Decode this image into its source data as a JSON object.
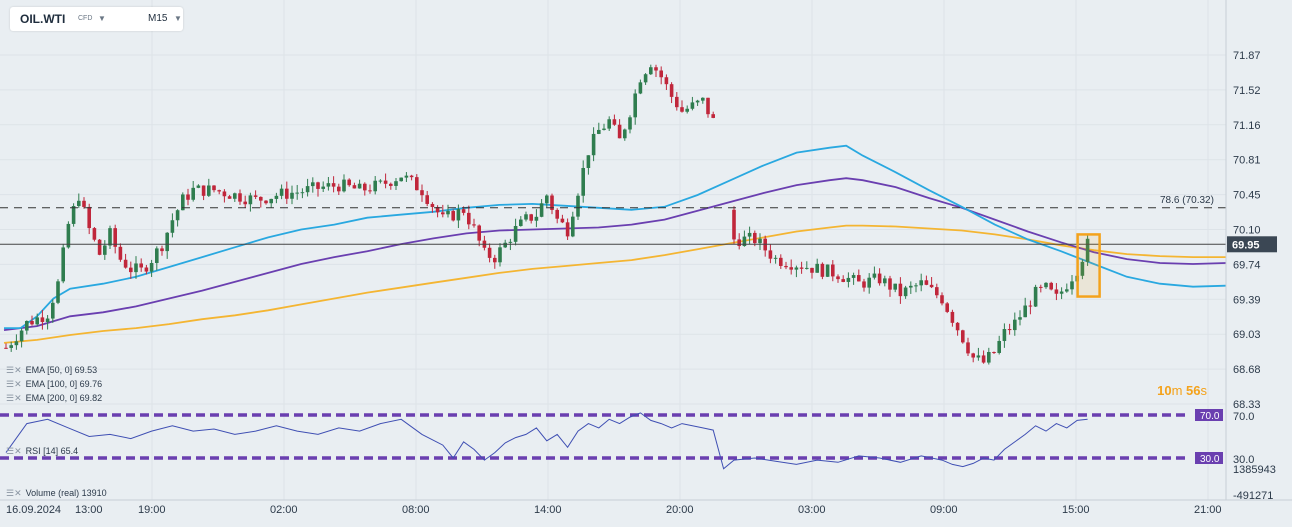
{
  "header": {
    "symbol": "OIL.WTI",
    "instrument_type": "CFD",
    "timeframe": "M15"
  },
  "indicators": [
    {
      "label": "EMA [50, 0]",
      "value": "69.53",
      "color": "#29a8e0"
    },
    {
      "label": "EMA [100, 0]",
      "value": "69.76",
      "color": "#6a3fb0"
    },
    {
      "label": "EMA [200, 0]",
      "value": "69.82",
      "color": "#f4b532"
    }
  ],
  "rsi": {
    "label": "RSI [14]",
    "value": "65.4",
    "upper": "70.0",
    "lower": "30.0"
  },
  "volume": {
    "label": "Volume (real)",
    "value": "13910",
    "axis_top": "1385943",
    "axis_bottom": "-491271"
  },
  "countdown": {
    "minutes": "10",
    "min_unit": "m",
    "seconds": "56",
    "sec_unit": "s"
  },
  "chart_data": {
    "type": "candlestick",
    "y_ticks": [
      "71.87",
      "71.52",
      "71.16",
      "70.81",
      "70.45",
      "70.10",
      "69.74",
      "69.39",
      "69.03",
      "68.68",
      "68.33"
    ],
    "x_ticks": [
      "16.09.2024",
      "13:00",
      "19:00",
      "02:00",
      "08:00",
      "14:00",
      "20:00",
      "03:00",
      "09:00",
      "15:00",
      "21:00"
    ],
    "current_price": "69.95",
    "fib_level": "78.6 (70.32)",
    "ema50": [
      [
        0,
        69.1
      ],
      [
        4,
        69.1
      ],
      [
        8,
        69.22
      ],
      [
        12,
        69.4
      ],
      [
        16,
        69.5
      ],
      [
        24,
        69.55
      ],
      [
        32,
        69.62
      ],
      [
        40,
        69.72
      ],
      [
        48,
        69.82
      ],
      [
        56,
        69.92
      ],
      [
        64,
        70.02
      ],
      [
        72,
        70.1
      ],
      [
        80,
        70.15
      ],
      [
        88,
        70.22
      ],
      [
        96,
        70.25
      ],
      [
        104,
        70.28
      ],
      [
        112,
        70.32
      ],
      [
        120,
        70.35
      ],
      [
        128,
        70.36
      ],
      [
        136,
        70.34
      ],
      [
        144,
        70.32
      ],
      [
        152,
        70.3
      ],
      [
        160,
        70.33
      ],
      [
        168,
        70.45
      ],
      [
        176,
        70.6
      ],
      [
        184,
        70.75
      ],
      [
        192,
        70.88
      ],
      [
        200,
        70.93
      ],
      [
        204,
        70.95
      ],
      [
        208,
        70.85
      ],
      [
        216,
        70.68
      ],
      [
        224,
        70.5
      ],
      [
        232,
        70.33
      ],
      [
        240,
        70.15
      ],
      [
        248,
        70.0
      ],
      [
        256,
        69.88
      ],
      [
        264,
        69.75
      ],
      [
        272,
        69.62
      ],
      [
        280,
        69.55
      ],
      [
        288,
        69.52
      ],
      [
        296,
        69.53
      ]
    ],
    "ema100": [
      [
        0,
        69.08
      ],
      [
        8,
        69.12
      ],
      [
        16,
        69.22
      ],
      [
        24,
        69.26
      ],
      [
        32,
        69.32
      ],
      [
        40,
        69.4
      ],
      [
        48,
        69.48
      ],
      [
        56,
        69.57
      ],
      [
        64,
        69.66
      ],
      [
        72,
        69.75
      ],
      [
        80,
        69.82
      ],
      [
        88,
        69.88
      ],
      [
        96,
        69.95
      ],
      [
        104,
        70.01
      ],
      [
        112,
        70.06
      ],
      [
        120,
        70.09
      ],
      [
        128,
        70.1
      ],
      [
        136,
        70.11
      ],
      [
        144,
        70.12
      ],
      [
        152,
        70.15
      ],
      [
        160,
        70.2
      ],
      [
        168,
        70.29
      ],
      [
        176,
        70.38
      ],
      [
        184,
        70.47
      ],
      [
        192,
        70.55
      ],
      [
        200,
        70.6
      ],
      [
        204,
        70.62
      ],
      [
        208,
        70.6
      ],
      [
        216,
        70.53
      ],
      [
        224,
        70.42
      ],
      [
        232,
        70.32
      ],
      [
        240,
        70.2
      ],
      [
        248,
        70.08
      ],
      [
        256,
        69.97
      ],
      [
        264,
        69.87
      ],
      [
        272,
        69.8
      ],
      [
        280,
        69.76
      ],
      [
        288,
        69.75
      ],
      [
        296,
        69.76
      ]
    ],
    "ema200": [
      [
        0,
        68.95
      ],
      [
        8,
        68.98
      ],
      [
        16,
        69.03
      ],
      [
        24,
        69.07
      ],
      [
        32,
        69.1
      ],
      [
        40,
        69.14
      ],
      [
        48,
        69.19
      ],
      [
        56,
        69.23
      ],
      [
        64,
        69.28
      ],
      [
        72,
        69.34
      ],
      [
        80,
        69.4
      ],
      [
        88,
        69.46
      ],
      [
        96,
        69.51
      ],
      [
        104,
        69.56
      ],
      [
        112,
        69.61
      ],
      [
        120,
        69.66
      ],
      [
        128,
        69.7
      ],
      [
        136,
        69.73
      ],
      [
        144,
        69.76
      ],
      [
        152,
        69.79
      ],
      [
        160,
        69.84
      ],
      [
        168,
        69.9
      ],
      [
        176,
        69.96
      ],
      [
        184,
        70.02
      ],
      [
        192,
        70.08
      ],
      [
        200,
        70.12
      ],
      [
        204,
        70.14
      ],
      [
        208,
        70.14
      ],
      [
        216,
        70.13
      ],
      [
        224,
        70.11
      ],
      [
        232,
        70.09
      ],
      [
        240,
        70.05
      ],
      [
        248,
        70.0
      ],
      [
        256,
        69.94
      ],
      [
        264,
        69.89
      ],
      [
        272,
        69.85
      ],
      [
        280,
        69.83
      ],
      [
        288,
        69.82
      ],
      [
        296,
        69.82
      ]
    ],
    "price_path": [
      [
        0,
        68.9
      ],
      [
        4,
        69.15
      ],
      [
        8,
        69.25
      ],
      [
        10,
        69.55
      ],
      [
        12,
        70.15
      ],
      [
        14,
        70.45
      ],
      [
        16,
        70.1
      ],
      [
        18,
        69.85
      ],
      [
        20,
        70.05
      ],
      [
        22,
        69.8
      ],
      [
        24,
        69.7
      ],
      [
        26,
        69.68
      ],
      [
        28,
        69.8
      ],
      [
        30,
        69.95
      ],
      [
        32,
        70.2
      ],
      [
        34,
        70.4
      ],
      [
        36,
        70.5
      ],
      [
        40,
        70.5
      ],
      [
        44,
        70.45
      ],
      [
        48,
        70.4
      ],
      [
        52,
        70.45
      ],
      [
        56,
        70.48
      ],
      [
        60,
        70.52
      ],
      [
        64,
        70.55
      ],
      [
        68,
        70.5
      ],
      [
        72,
        70.55
      ],
      [
        76,
        70.65
      ],
      [
        80,
        70.5
      ],
      [
        84,
        70.2
      ],
      [
        88,
        70.3
      ],
      [
        90,
        70.1
      ],
      [
        92,
        69.85
      ],
      [
        94,
        69.82
      ],
      [
        96,
        69.95
      ],
      [
        98,
        70.1
      ],
      [
        100,
        70.2
      ],
      [
        102,
        70.25
      ],
      [
        104,
        70.45
      ],
      [
        106,
        70.2
      ],
      [
        108,
        70.1
      ],
      [
        110,
        70.5
      ],
      [
        112,
        70.9
      ],
      [
        114,
        71.1
      ],
      [
        116,
        71.2
      ],
      [
        118,
        71.0
      ],
      [
        120,
        71.3
      ],
      [
        122,
        71.65
      ],
      [
        124,
        71.8
      ],
      [
        126,
        71.65
      ],
      [
        128,
        71.45
      ],
      [
        130,
        71.3
      ],
      [
        132,
        71.35
      ],
      [
        134,
        71.4
      ],
      [
        136,
        71.2
      ],
      [
        140,
        70.0
      ],
      [
        144,
        70.0
      ],
      [
        148,
        69.8
      ],
      [
        152,
        69.75
      ],
      [
        156,
        69.7
      ],
      [
        160,
        69.65
      ],
      [
        164,
        69.55
      ],
      [
        168,
        69.6
      ],
      [
        172,
        69.45
      ],
      [
        176,
        69.55
      ],
      [
        180,
        69.4
      ],
      [
        182,
        69.2
      ],
      [
        184,
        69.0
      ],
      [
        186,
        68.8
      ],
      [
        188,
        68.75
      ],
      [
        190,
        68.85
      ],
      [
        192,
        69.05
      ],
      [
        194,
        69.15
      ],
      [
        196,
        69.3
      ],
      [
        198,
        69.45
      ],
      [
        200,
        69.5
      ],
      [
        202,
        69.4
      ],
      [
        204,
        69.55
      ],
      [
        206,
        69.7
      ],
      [
        208,
        69.95
      ]
    ],
    "rsi_path": [
      [
        0,
        35
      ],
      [
        4,
        62
      ],
      [
        8,
        66
      ],
      [
        12,
        58
      ],
      [
        16,
        50
      ],
      [
        20,
        52
      ],
      [
        24,
        48
      ],
      [
        28,
        55
      ],
      [
        32,
        60
      ],
      [
        36,
        55
      ],
      [
        40,
        57
      ],
      [
        44,
        52
      ],
      [
        48,
        55
      ],
      [
        52,
        60
      ],
      [
        56,
        55
      ],
      [
        60,
        52
      ],
      [
        64,
        58
      ],
      [
        68,
        55
      ],
      [
        72,
        62
      ],
      [
        76,
        66
      ],
      [
        80,
        52
      ],
      [
        84,
        42
      ],
      [
        86,
        30
      ],
      [
        88,
        45
      ],
      [
        90,
        38
      ],
      [
        92,
        28
      ],
      [
        94,
        35
      ],
      [
        96,
        44
      ],
      [
        98,
        49
      ],
      [
        100,
        52
      ],
      [
        102,
        58
      ],
      [
        104,
        46
      ],
      [
        106,
        52
      ],
      [
        108,
        40
      ],
      [
        110,
        55
      ],
      [
        112,
        62
      ],
      [
        114,
        58
      ],
      [
        116,
        66
      ],
      [
        118,
        62
      ],
      [
        120,
        68
      ],
      [
        122,
        72
      ],
      [
        124,
        65
      ],
      [
        126,
        62
      ],
      [
        128,
        58
      ],
      [
        130,
        62
      ],
      [
        132,
        60
      ],
      [
        134,
        58
      ],
      [
        136,
        56
      ],
      [
        138,
        20
      ],
      [
        140,
        28
      ],
      [
        144,
        30
      ],
      [
        148,
        27
      ],
      [
        152,
        24
      ],
      [
        156,
        28
      ],
      [
        160,
        26
      ],
      [
        164,
        32
      ],
      [
        168,
        30
      ],
      [
        172,
        26
      ],
      [
        176,
        32
      ],
      [
        180,
        28
      ],
      [
        182,
        24
      ],
      [
        184,
        22
      ],
      [
        186,
        25
      ],
      [
        188,
        30
      ],
      [
        190,
        28
      ],
      [
        192,
        38
      ],
      [
        194,
        45
      ],
      [
        196,
        52
      ],
      [
        198,
        60
      ],
      [
        200,
        55
      ],
      [
        202,
        62
      ],
      [
        204,
        58
      ],
      [
        206,
        65
      ],
      [
        208,
        66
      ]
    ],
    "rsi_ylim": [
      0,
      100
    ]
  }
}
